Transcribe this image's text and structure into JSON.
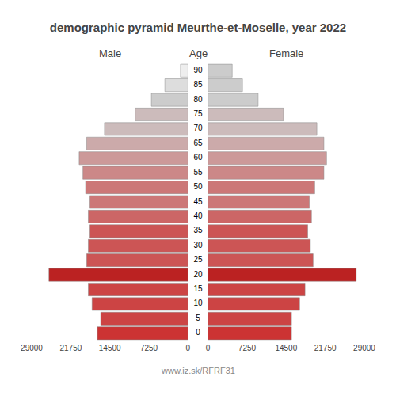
{
  "chart_data": {
    "type": "bar",
    "orientation": "horizontal",
    "title": "demographic pyramid Meurthe-et-Moselle, year 2022",
    "ylabel": "Age",
    "categories": [
      "0",
      "5",
      "10",
      "15",
      "20",
      "25",
      "30",
      "35",
      "40",
      "45",
      "50",
      "55",
      "60",
      "65",
      "70",
      "75",
      "80",
      "85",
      "90"
    ],
    "series": [
      {
        "name": "Male",
        "colors": [
          "#cc3333",
          "#cc4444",
          "#cc4444",
          "#cc4444",
          "#bb2222",
          "#cc5555",
          "#cc5555",
          "#cc5555",
          "#cc6666",
          "#cc7777",
          "#cc7777",
          "#cc8888",
          "#cc9999",
          "#ccaaaa",
          "#ccbbbb",
          "#ccbbbb",
          "#cccccc",
          "#dddddd",
          "#eeeeee"
        ],
        "values": [
          16800,
          16200,
          17800,
          18500,
          25800,
          18800,
          18500,
          18200,
          18500,
          18200,
          19000,
          19500,
          20200,
          18800,
          15500,
          9800,
          6800,
          4300,
          1400
        ]
      },
      {
        "name": "Female",
        "colors": [
          "#cc3333",
          "#cc4444",
          "#cc4444",
          "#cc4444",
          "#bb2222",
          "#cc5555",
          "#cc5555",
          "#cc5555",
          "#cc6666",
          "#cc7777",
          "#cc7777",
          "#cc8888",
          "#cc9999",
          "#ccaaaa",
          "#ccbbbb",
          "#ccbbbb",
          "#cccccc",
          "#cccccc",
          "#cccccc"
        ],
        "values": [
          15500,
          15500,
          17000,
          18000,
          27500,
          19500,
          19000,
          18500,
          19200,
          18800,
          19800,
          21500,
          22000,
          21500,
          20200,
          14000,
          9300,
          6400,
          4500
        ]
      }
    ],
    "xlim": [
      0,
      29000
    ],
    "xticks": [
      0,
      7250,
      14500,
      21750,
      29000
    ],
    "grid": false,
    "annotations": [
      "www.iz.sk/RFRF31"
    ]
  }
}
